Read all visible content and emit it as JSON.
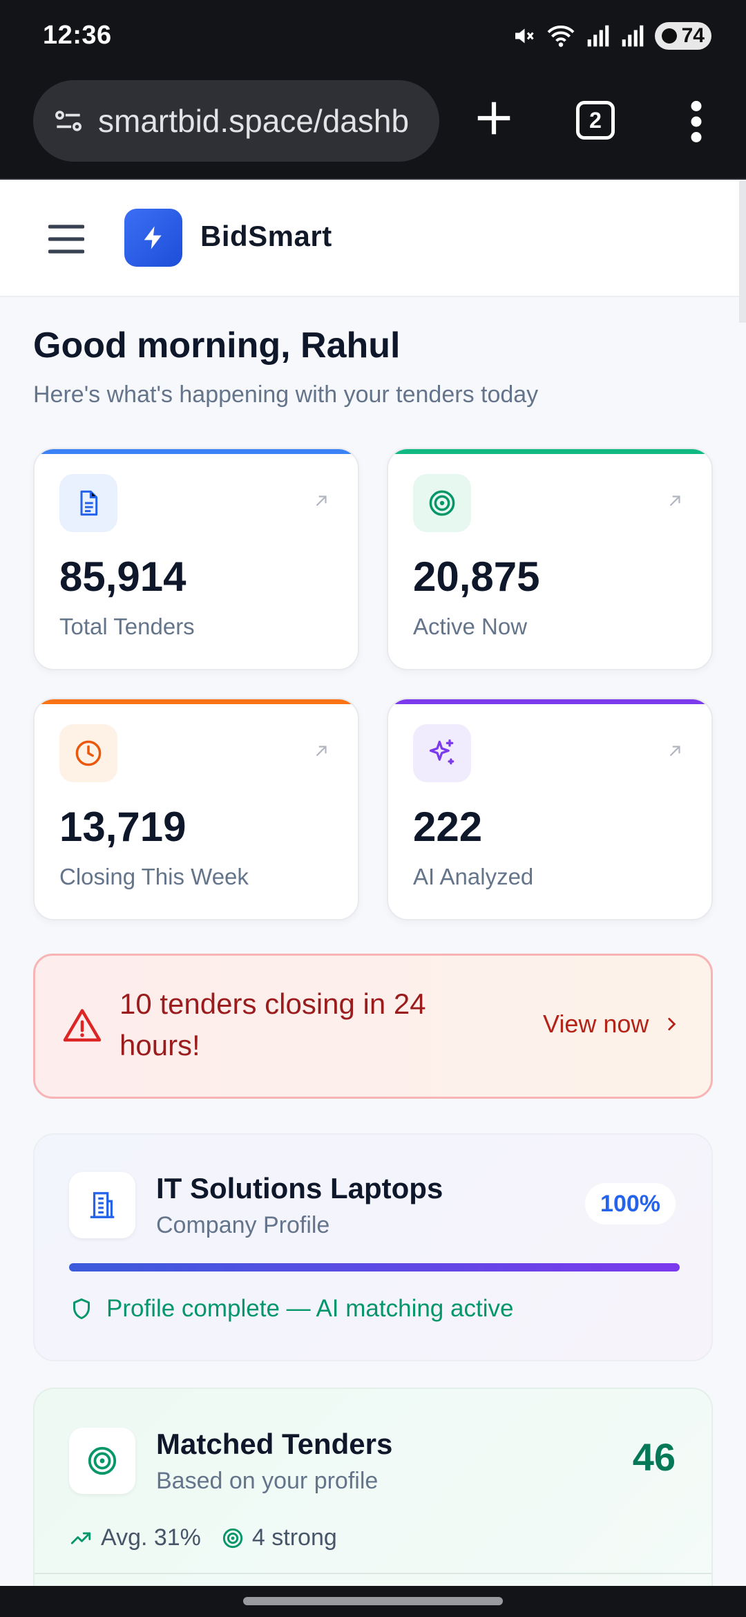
{
  "status_bar": {
    "time": "12:36",
    "battery": "74",
    "icons": [
      "mute-icon",
      "wifi-icon",
      "signal-icon",
      "signal-icon",
      "battery-icon"
    ]
  },
  "browser": {
    "url": "smartbid.space/dashb",
    "tab_count": "2"
  },
  "header": {
    "brand": "BidSmart"
  },
  "greeting": {
    "title": "Good morning, Rahul",
    "subtitle": "Here's what's happening with your tenders today"
  },
  "stats": [
    {
      "value": "85,914",
      "label": "Total Tenders",
      "accent": "#3b82f6",
      "icon": "document-icon",
      "icon_bg": "#eaf1fe",
      "icon_color": "#2563eb"
    },
    {
      "value": "20,875",
      "label": "Active Now",
      "accent": "#10b981",
      "icon": "target-icon",
      "icon_bg": "#e7f8f1",
      "icon_color": "#059669"
    },
    {
      "value": "13,719",
      "label": "Closing This Week",
      "accent": "#f97316",
      "icon": "clock-icon",
      "icon_bg": "#fef1e6",
      "icon_color": "#ea580c"
    },
    {
      "value": "222",
      "label": "AI Analyzed",
      "accent": "#7c3aed",
      "icon": "sparkle-icon",
      "icon_bg": "#f1ecfd",
      "icon_color": "#7c3aed"
    }
  ],
  "alert": {
    "text": "10 tenders closing in 24 hours!",
    "cta": "View now"
  },
  "company": {
    "name": "IT Solutions Laptops",
    "subtitle": "Company Profile",
    "completion_label": "100%",
    "completion": 1.0,
    "status": "Profile complete — AI matching active"
  },
  "matched": {
    "title": "Matched Tenders",
    "subtitle": "Based on your profile",
    "count": "46",
    "avg": "Avg. 31%",
    "strong": "4 strong"
  },
  "colors": {
    "primary": "#2563eb",
    "success": "#059669",
    "danger": "#b42318",
    "dark_chrome": "#131418"
  }
}
